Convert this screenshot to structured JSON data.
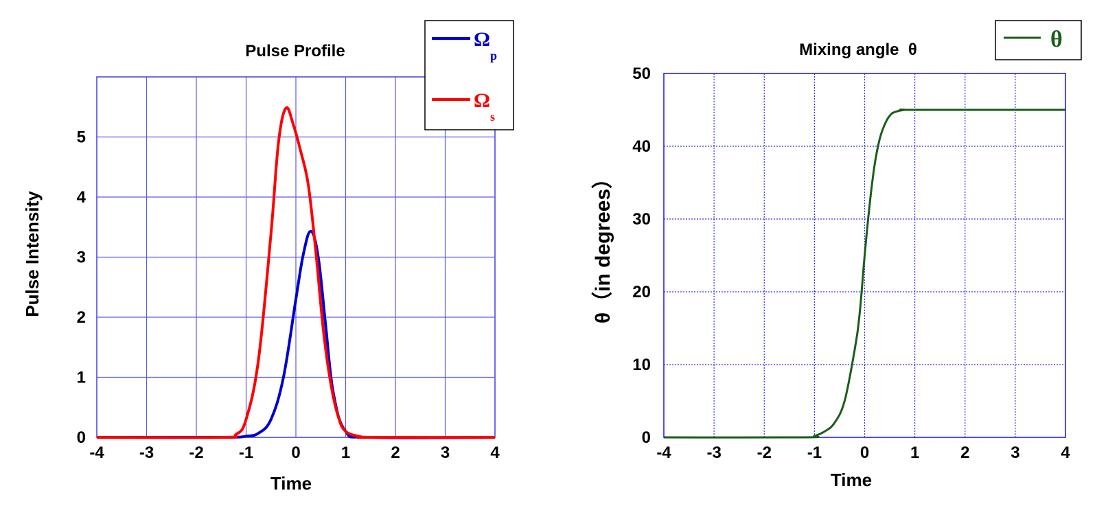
{
  "chart_data": [
    {
      "type": "line",
      "title": "Pulse Profile",
      "xlabel": "Time",
      "ylabel": "Pulse Intensity",
      "xlim": [
        -4,
        4
      ],
      "ylim": [
        0,
        6
      ],
      "xticks": [
        "-4",
        "-3",
        "-2",
        "-1",
        "0",
        "1",
        "2",
        "3",
        "4"
      ],
      "yticks": [
        "0",
        "1",
        "2",
        "3",
        "4",
        "5"
      ],
      "grid": true,
      "legend_position": "top-right",
      "series": [
        {
          "name": "Ω",
          "subscript": "p",
          "color": "#0000cc",
          "x": [
            -4,
            -1.5,
            -1.0,
            -0.75,
            -0.5,
            -0.25,
            0,
            0.15,
            0.3,
            0.45,
            0.6,
            0.75,
            1.0,
            1.5,
            4
          ],
          "y": [
            0,
            0,
            0.02,
            0.07,
            0.3,
            1.0,
            2.3,
            3.05,
            3.43,
            3.0,
            1.85,
            0.75,
            0.1,
            0,
            0
          ]
        },
        {
          "name": "Ω",
          "subscript": "s",
          "color": "#ff0000",
          "x": [
            -4,
            -1.5,
            -1.2,
            -1.0,
            -0.75,
            -0.5,
            -0.35,
            -0.2,
            -0.05,
            0.1,
            0.25,
            0.4,
            0.55,
            0.7,
            0.85,
            1.0,
            1.3,
            1.5,
            4
          ],
          "y": [
            0,
            0,
            0.05,
            0.3,
            1.3,
            3.4,
            4.9,
            5.48,
            5.2,
            4.75,
            4.2,
            3.1,
            1.8,
            0.9,
            0.35,
            0.1,
            0.01,
            0,
            0
          ]
        }
      ]
    },
    {
      "type": "line",
      "title": "Mixing angle  θ",
      "xlabel": "Time",
      "ylabel": "θ（in degrees）",
      "xlim": [
        -4,
        4
      ],
      "ylim": [
        0,
        50
      ],
      "xticks": [
        "-4",
        "-3",
        "-2",
        "-1",
        "0",
        "1",
        "2",
        "3",
        "4"
      ],
      "yticks": [
        "0",
        "10",
        "20",
        "30",
        "40",
        "50"
      ],
      "grid": true,
      "legend_position": "top-right",
      "series": [
        {
          "name": "θ",
          "color": "#1a5c1a",
          "x": [
            -4,
            -1.2,
            -1.0,
            -0.8,
            -0.6,
            -0.4,
            -0.2,
            -0.1,
            0,
            0.1,
            0.2,
            0.3,
            0.4,
            0.5,
            0.6,
            0.8,
            1.0,
            4
          ],
          "y": [
            0,
            0,
            0.2,
            0.8,
            2.0,
            5.0,
            12.0,
            17.0,
            25.0,
            32.0,
            37.5,
            41.0,
            43.0,
            44.2,
            44.7,
            45.0,
            45.0,
            45.0
          ]
        }
      ]
    }
  ]
}
